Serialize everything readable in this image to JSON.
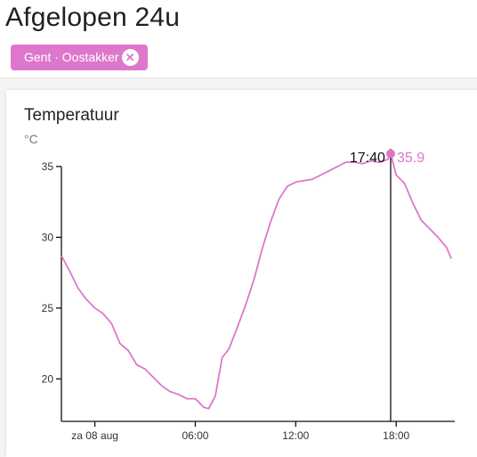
{
  "page": {
    "title": "Afgelopen 24u"
  },
  "filter": {
    "chip_label": "Gent · Oostakker",
    "remove_icon": "close-circle-icon",
    "remove_glyph": "✕"
  },
  "colors": {
    "accent": "#dd77cc",
    "axis": "#111111",
    "background": "#f4f4f4"
  },
  "card": {
    "title": "Temperatuur",
    "unit": "°C"
  },
  "chart_data": {
    "type": "line",
    "title": "Temperatuur",
    "ylabel": "°C",
    "xlabel": "",
    "x_unit": "hours since za 08 aug 00:00",
    "ylim": [
      17,
      36
    ],
    "xlim": [
      -2.0,
      21.5
    ],
    "yticks": [
      20,
      25,
      30,
      35
    ],
    "xticks": [
      {
        "value": 0,
        "label": "za 08 aug"
      },
      {
        "value": 6,
        "label": "06:00"
      },
      {
        "value": 12,
        "label": "12:00"
      },
      {
        "value": 18,
        "label": "18:00"
      }
    ],
    "grid": false,
    "series": [
      {
        "color": "#dd77cc",
        "x": [
          -2.0,
          -1.5,
          -1.0,
          -0.5,
          0.0,
          0.5,
          1.0,
          1.5,
          2.0,
          2.5,
          3.0,
          3.5,
          4.0,
          4.5,
          5.0,
          5.5,
          6.0,
          6.5,
          6.8,
          7.2,
          7.6,
          8.0,
          8.5,
          9.0,
          9.5,
          10.0,
          10.5,
          11.0,
          11.5,
          12.0,
          12.5,
          13.0,
          13.5,
          14.0,
          14.5,
          15.0,
          15.5,
          16.0,
          16.5,
          17.0,
          17.5,
          17.67,
          18.0,
          18.5,
          19.0,
          19.5,
          20.0,
          20.5,
          21.0,
          21.3
        ],
        "values": [
          28.7,
          27.6,
          26.4,
          25.6,
          25.0,
          24.6,
          23.9,
          22.5,
          22.0,
          21.0,
          20.7,
          20.1,
          19.5,
          19.1,
          18.9,
          18.6,
          18.6,
          18.0,
          17.9,
          18.8,
          21.5,
          22.1,
          23.6,
          25.2,
          27.0,
          29.2,
          31.1,
          32.7,
          33.6,
          33.9,
          34.0,
          34.1,
          34.4,
          34.7,
          35.0,
          35.3,
          35.3,
          35.2,
          35.4,
          35.3,
          35.5,
          35.9,
          34.4,
          33.8,
          32.4,
          31.2,
          30.6,
          30.0,
          29.3,
          28.5
        ]
      }
    ],
    "cursor": {
      "x": 17.67,
      "time_label": "17:40",
      "value_label": "35.9"
    }
  }
}
